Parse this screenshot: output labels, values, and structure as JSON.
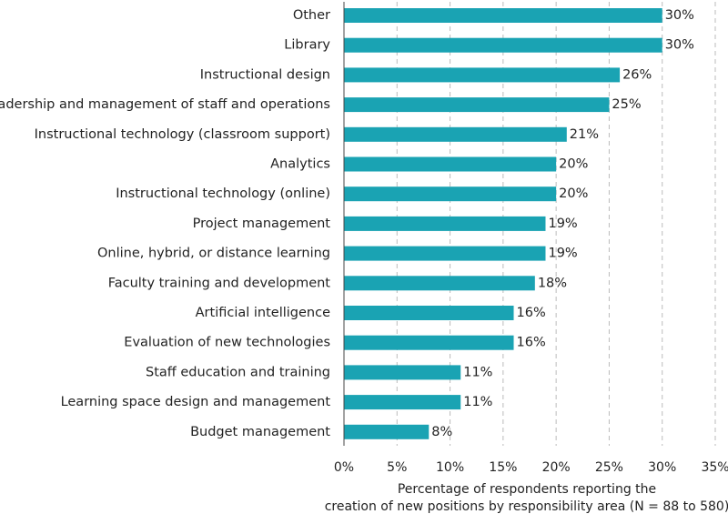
{
  "chart_data": {
    "type": "bar",
    "orientation": "horizontal",
    "categories": [
      "Other",
      "Library",
      "Instructional design",
      "Leadership and management of staff and operations",
      "Instructional technology (classroom support)",
      "Analytics",
      "Instructional technology (online)",
      "Project management",
      "Online, hybrid, or distance learning",
      "Faculty training and development",
      "Artificial intelligence",
      "Evaluation of new technologies",
      "Staff education and training",
      "Learning space design and management",
      "Budget management"
    ],
    "values": [
      30,
      30,
      26,
      25,
      21,
      20,
      20,
      19,
      19,
      18,
      16,
      16,
      11,
      11,
      8
    ],
    "value_labels": [
      "30%",
      "30%",
      "26%",
      "25%",
      "21%",
      "20%",
      "20%",
      "19%",
      "19%",
      "18%",
      "16%",
      "16%",
      "11%",
      "11%",
      "8%"
    ],
    "xlim": [
      0,
      35
    ],
    "xticks": [
      0,
      5,
      10,
      15,
      20,
      25,
      30,
      35
    ],
    "xtick_labels": [
      "0%",
      "5%",
      "10%",
      "15%",
      "20%",
      "25%",
      "30%",
      "35%"
    ],
    "xlabel_lines": [
      "Percentage of respondents reporting the",
      "creation of new positions by responsibility area (N = 88 to 580)"
    ],
    "grid": "vertical-dashed",
    "legend": "none",
    "bar_color": "#1aa3b3",
    "grid_color": "#bbbbbb",
    "axis_color": "#444444"
  }
}
